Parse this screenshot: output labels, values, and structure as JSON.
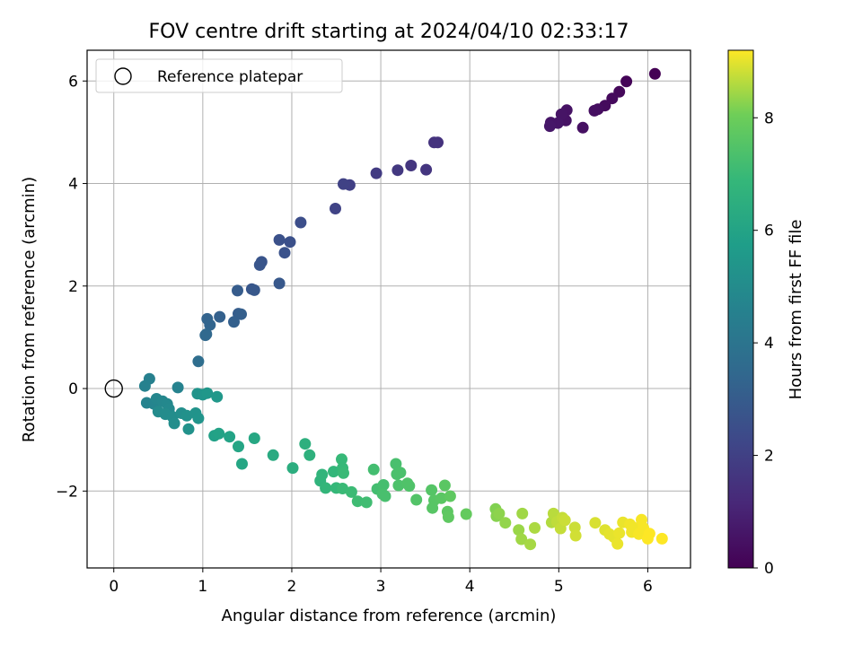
{
  "chart_data": {
    "type": "scatter",
    "title": "FOV centre drift starting at 2024/04/10 02:33:17",
    "xlabel": "Angular distance from reference (arcmin)",
    "ylabel": "Rotation from reference (arcmin)",
    "xlim": [
      -0.3,
      6.48
    ],
    "ylim": [
      -3.5,
      6.6
    ],
    "xticks": [
      0,
      1,
      2,
      3,
      4,
      5,
      6
    ],
    "yticks": [
      -2,
      0,
      2,
      4,
      6
    ],
    "grid": true,
    "legend": {
      "placement": "top-left",
      "entries": [
        "Reference platepar"
      ]
    },
    "reference_point": {
      "x": 0,
      "y": 0,
      "label": "Reference platepar"
    },
    "colorbar": {
      "label": "Hours from first FF file",
      "colormap": "viridis",
      "range": [
        0,
        9.2
      ],
      "ticks": [
        0,
        2,
        4,
        6,
        8
      ]
    },
    "points": [
      [
        6.08,
        6.14,
        0.0
      ],
      [
        5.76,
        5.99,
        0.1
      ],
      [
        5.68,
        5.79,
        0.2
      ],
      [
        5.6,
        5.66,
        0.25
      ],
      [
        5.52,
        5.52,
        0.3
      ],
      [
        5.44,
        5.45,
        0.35
      ],
      [
        5.4,
        5.42,
        0.4
      ],
      [
        5.27,
        5.09,
        0.45
      ],
      [
        5.09,
        5.43,
        0.5
      ],
      [
        5.08,
        5.23,
        0.5
      ],
      [
        5.03,
        5.35,
        0.55
      ],
      [
        4.99,
        5.18,
        0.6
      ],
      [
        4.91,
        5.19,
        0.6
      ],
      [
        4.9,
        5.12,
        0.65
      ],
      [
        3.64,
        4.8,
        1.5
      ],
      [
        3.6,
        4.8,
        1.55
      ],
      [
        3.51,
        4.27,
        1.6
      ],
      [
        3.34,
        4.35,
        1.65
      ],
      [
        3.19,
        4.26,
        1.7
      ],
      [
        2.95,
        4.2,
        1.8
      ],
      [
        2.65,
        3.97,
        2.0
      ],
      [
        2.58,
        3.99,
        2.05
      ],
      [
        2.49,
        3.51,
        2.1
      ],
      [
        2.1,
        3.24,
        2.5
      ],
      [
        1.98,
        2.86,
        2.55
      ],
      [
        1.86,
        2.9,
        2.6
      ],
      [
        1.92,
        2.65,
        2.65
      ],
      [
        1.66,
        2.47,
        2.7
      ],
      [
        1.64,
        2.41,
        2.75
      ],
      [
        1.55,
        1.94,
        2.8
      ],
      [
        1.58,
        1.92,
        2.85
      ],
      [
        1.86,
        2.05,
        2.85
      ],
      [
        1.39,
        1.91,
        3.0
      ],
      [
        1.4,
        1.46,
        3.05
      ],
      [
        1.43,
        1.45,
        3.1
      ],
      [
        1.35,
        1.3,
        3.15
      ],
      [
        1.19,
        1.4,
        3.2
      ],
      [
        1.05,
        1.36,
        3.3
      ],
      [
        1.08,
        1.24,
        3.35
      ],
      [
        1.04,
        1.06,
        3.45
      ],
      [
        1.03,
        1.04,
        3.5
      ],
      [
        0.95,
        0.53,
        3.7
      ],
      [
        0.4,
        0.19,
        4.5
      ],
      [
        0.35,
        0.05,
        4.55
      ],
      [
        0.72,
        0.02,
        4.6
      ],
      [
        0.37,
        -0.28,
        4.65
      ],
      [
        0.45,
        -0.3,
        4.7
      ],
      [
        0.48,
        -0.2,
        4.75
      ],
      [
        0.55,
        -0.25,
        4.8
      ],
      [
        0.6,
        -0.3,
        4.85
      ],
      [
        0.62,
        -0.4,
        4.9
      ],
      [
        0.5,
        -0.45,
        4.95
      ],
      [
        0.58,
        -0.5,
        5.0
      ],
      [
        0.66,
        -0.55,
        5.05
      ],
      [
        0.68,
        -0.68,
        5.1
      ],
      [
        0.76,
        -0.48,
        5.15
      ],
      [
        0.82,
        -0.53,
        5.2
      ],
      [
        0.84,
        -0.79,
        5.25
      ],
      [
        0.92,
        -0.48,
        5.3
      ],
      [
        0.95,
        -0.58,
        5.35
      ],
      [
        0.94,
        -0.1,
        5.35
      ],
      [
        1.0,
        -0.12,
        5.4
      ],
      [
        1.05,
        -0.09,
        5.45
      ],
      [
        1.16,
        -0.16,
        5.5
      ],
      [
        1.13,
        -0.92,
        5.9
      ],
      [
        1.18,
        -0.88,
        5.95
      ],
      [
        1.3,
        -0.94,
        6.0
      ],
      [
        1.4,
        -1.13,
        6.05
      ],
      [
        1.44,
        -1.47,
        6.1
      ],
      [
        1.58,
        -0.97,
        6.15
      ],
      [
        1.79,
        -1.3,
        6.3
      ],
      [
        2.01,
        -1.55,
        6.45
      ],
      [
        2.15,
        -1.08,
        6.55
      ],
      [
        2.2,
        -1.3,
        6.6
      ],
      [
        2.32,
        -1.8,
        6.7
      ],
      [
        2.34,
        -1.68,
        6.75
      ],
      [
        2.38,
        -1.94,
        6.8
      ],
      [
        2.47,
        -1.62,
        6.85
      ],
      [
        2.5,
        -1.94,
        6.9
      ],
      [
        2.56,
        -1.38,
        6.95
      ],
      [
        2.57,
        -1.55,
        6.95
      ],
      [
        2.58,
        -1.65,
        7.0
      ],
      [
        2.57,
        -1.95,
        7.0
      ],
      [
        2.67,
        -2.02,
        7.05
      ],
      [
        2.74,
        -2.2,
        7.1
      ],
      [
        2.84,
        -2.22,
        7.15
      ],
      [
        2.92,
        -1.58,
        7.2
      ],
      [
        2.96,
        -1.96,
        7.2
      ],
      [
        3.03,
        -1.88,
        7.25
      ],
      [
        3.02,
        -2.06,
        7.3
      ],
      [
        3.05,
        -2.1,
        7.3
      ],
      [
        3.17,
        -1.47,
        7.3
      ],
      [
        3.18,
        -1.67,
        7.35
      ],
      [
        3.22,
        -1.64,
        7.35
      ],
      [
        3.2,
        -1.89,
        7.4
      ],
      [
        3.3,
        -1.85,
        7.45
      ],
      [
        3.32,
        -1.9,
        7.45
      ],
      [
        3.4,
        -2.17,
        7.5
      ],
      [
        3.57,
        -1.98,
        7.55
      ],
      [
        3.6,
        -2.18,
        7.6
      ],
      [
        3.58,
        -2.33,
        7.6
      ],
      [
        3.68,
        -2.14,
        7.65
      ],
      [
        3.72,
        -1.89,
        7.65
      ],
      [
        3.75,
        -2.4,
        7.7
      ],
      [
        3.76,
        -2.51,
        7.75
      ],
      [
        3.78,
        -2.1,
        7.75
      ],
      [
        3.96,
        -2.45,
        7.85
      ],
      [
        4.29,
        -2.35,
        8.2
      ],
      [
        4.3,
        -2.49,
        8.25
      ],
      [
        4.33,
        -2.44,
        8.3
      ],
      [
        4.4,
        -2.62,
        8.35
      ],
      [
        4.55,
        -2.76,
        8.4
      ],
      [
        4.58,
        -2.94,
        8.45
      ],
      [
        4.59,
        -2.44,
        8.45
      ],
      [
        4.68,
        -3.04,
        8.5
      ],
      [
        4.73,
        -2.72,
        8.55
      ],
      [
        4.92,
        -2.61,
        8.6
      ],
      [
        4.94,
        -2.44,
        8.65
      ],
      [
        4.98,
        -2.6,
        8.7
      ],
      [
        5.02,
        -2.73,
        8.75
      ],
      [
        5.04,
        -2.52,
        8.75
      ],
      [
        5.07,
        -2.57,
        8.8
      ],
      [
        5.18,
        -2.71,
        8.8
      ],
      [
        5.19,
        -2.87,
        8.85
      ],
      [
        5.41,
        -2.62,
        8.9
      ],
      [
        5.52,
        -2.76,
        8.95
      ],
      [
        5.57,
        -2.84,
        9.0
      ],
      [
        5.62,
        -2.9,
        9.0
      ],
      [
        5.66,
        -3.03,
        9.05
      ],
      [
        5.68,
        -2.82,
        9.05
      ],
      [
        5.72,
        -2.61,
        9.05
      ],
      [
        5.8,
        -2.65,
        9.1
      ],
      [
        5.82,
        -2.8,
        9.1
      ],
      [
        5.85,
        -2.72,
        9.1
      ],
      [
        5.9,
        -2.84,
        9.15
      ],
      [
        5.93,
        -2.56,
        9.15
      ],
      [
        5.95,
        -2.72,
        9.15
      ],
      [
        6.0,
        -2.93,
        9.2
      ],
      [
        6.02,
        -2.83,
        9.2
      ],
      [
        6.16,
        -2.93,
        9.2
      ]
    ]
  }
}
